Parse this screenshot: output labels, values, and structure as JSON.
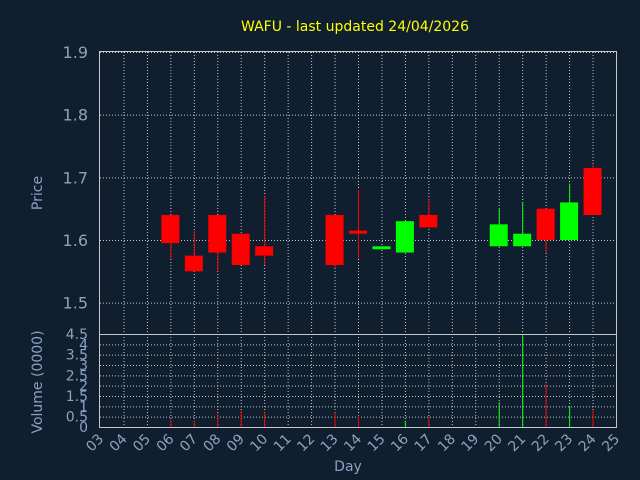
{
  "chart_data": [
    {
      "type": "candlestick",
      "title": "WAFU - last updated 24/04/2026",
      "ylabel": "Price",
      "ylim": [
        1.45,
        1.9
      ],
      "yticks": [
        "1.5",
        "1.6",
        "1.7",
        "1.8",
        "1.9"
      ],
      "grid": true,
      "colors": {
        "up": "#00ff00",
        "down": "#ff0000",
        "grid": "#c8c8c8",
        "background": "#0f1f30",
        "text": "#8aa3bf",
        "title": "#ffff00"
      },
      "candles": [
        {
          "day": "06",
          "open": 1.64,
          "close": 1.595,
          "high": 1.64,
          "low": 1.57
        },
        {
          "day": "07",
          "open": 1.575,
          "close": 1.55,
          "high": 1.615,
          "low": 1.55
        },
        {
          "day": "08",
          "open": 1.64,
          "close": 1.58,
          "high": 1.64,
          "low": 1.55
        },
        {
          "day": "09",
          "open": 1.61,
          "close": 1.56,
          "high": 1.61,
          "low": 1.56
        },
        {
          "day": "10",
          "open": 1.59,
          "close": 1.575,
          "high": 1.67,
          "low": 1.56
        },
        {
          "day": "13",
          "open": 1.64,
          "close": 1.56,
          "high": 1.64,
          "low": 1.555
        },
        {
          "day": "14",
          "open": 1.615,
          "close": 1.61,
          "high": 1.68,
          "low": 1.57
        },
        {
          "day": "15",
          "open": 1.59,
          "close": 1.59,
          "high": 1.59,
          "low": 1.59
        },
        {
          "day": "16",
          "open": 1.58,
          "close": 1.63,
          "high": 1.63,
          "low": 1.58
        },
        {
          "day": "17",
          "open": 1.64,
          "close": 1.62,
          "high": 1.665,
          "low": 1.62
        },
        {
          "day": "20",
          "open": 1.59,
          "close": 1.625,
          "high": 1.65,
          "low": 1.59
        },
        {
          "day": "21",
          "open": 1.59,
          "close": 1.61,
          "high": 1.66,
          "low": 1.59
        },
        {
          "day": "22",
          "open": 1.65,
          "close": 1.6,
          "high": 1.65,
          "low": 1.58
        },
        {
          "day": "23",
          "open": 1.6,
          "close": 1.66,
          "high": 1.69,
          "low": 1.6
        },
        {
          "day": "24",
          "open": 1.715,
          "close": 1.64,
          "high": 1.72,
          "low": 1.64
        }
      ]
    },
    {
      "type": "bar",
      "ylabel": "Volume (0000)",
      "xlabel": "Day",
      "ylim": [
        0,
        4.5
      ],
      "yticks": [
        "0",
        "0.5",
        "1",
        "1.5",
        "2",
        "2.5",
        "3",
        "3.5",
        "4",
        "4.5"
      ],
      "categories": [
        "03",
        "04",
        "05",
        "06",
        "07",
        "08",
        "09",
        "10",
        "11",
        "12",
        "13",
        "14",
        "15",
        "16",
        "17",
        "18",
        "19",
        "20",
        "21",
        "22",
        "23",
        "24",
        "25"
      ],
      "values": [
        0,
        0,
        0,
        0.35,
        0.3,
        0.65,
        0.8,
        0.75,
        0,
        0,
        0.7,
        0.55,
        0,
        0.3,
        0.5,
        0,
        0,
        1.2,
        4.5,
        2.1,
        1.0,
        0.8,
        0
      ],
      "bar_colors": [
        "#ff0000",
        "#ff0000",
        "#ff0000",
        "#ff0000",
        "#ff0000",
        "#ff0000",
        "#ff0000",
        "#ff0000",
        "#ff0000",
        "#ff0000",
        "#ff0000",
        "#ff0000",
        "#00ff00",
        "#00ff00",
        "#ff0000",
        "#ff0000",
        "#ff0000",
        "#00ff00",
        "#00ff00",
        "#ff0000",
        "#00ff00",
        "#ff0000",
        "#ff0000"
      ]
    }
  ]
}
